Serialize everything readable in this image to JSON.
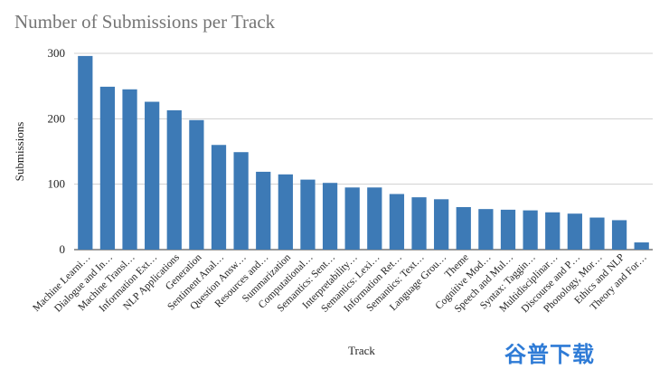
{
  "chart_data": {
    "type": "bar",
    "title": "Number of Submissions per Track",
    "xlabel": "Track",
    "ylabel": "Submissions",
    "ylim": [
      0,
      300
    ],
    "yticks": [
      0,
      100,
      200,
      300
    ],
    "grid": true,
    "bar_color": "#3d7ab6",
    "categories": [
      "Machine Learni…",
      "Dialogue and In…",
      "Machine Transl…",
      "Information Ext…",
      "NLP Applications",
      "Generation",
      "Sentiment Anal…",
      "Question Answ…",
      "Resources and…",
      "Summarization",
      "Computational…",
      "Semantics: Sent…",
      "Interpretability…",
      "Semantics: Lexi…",
      "Information Ret…",
      "Semantics: Text…",
      "Language Grou…",
      "Theme",
      "Cognitive Mod…",
      "Speech and Mul…",
      "Syntax: Taggin…",
      "Multidisciplinar…",
      "Discourse and P…",
      "Phonology, Mor…",
      "Ethics and NLP",
      "Theory and For…"
    ],
    "values": [
      296,
      249,
      245,
      226,
      213,
      198,
      160,
      149,
      119,
      115,
      107,
      102,
      95,
      95,
      85,
      80,
      77,
      65,
      62,
      61,
      60,
      57,
      55,
      49,
      45,
      11
    ]
  },
  "watermark": "谷普下载"
}
